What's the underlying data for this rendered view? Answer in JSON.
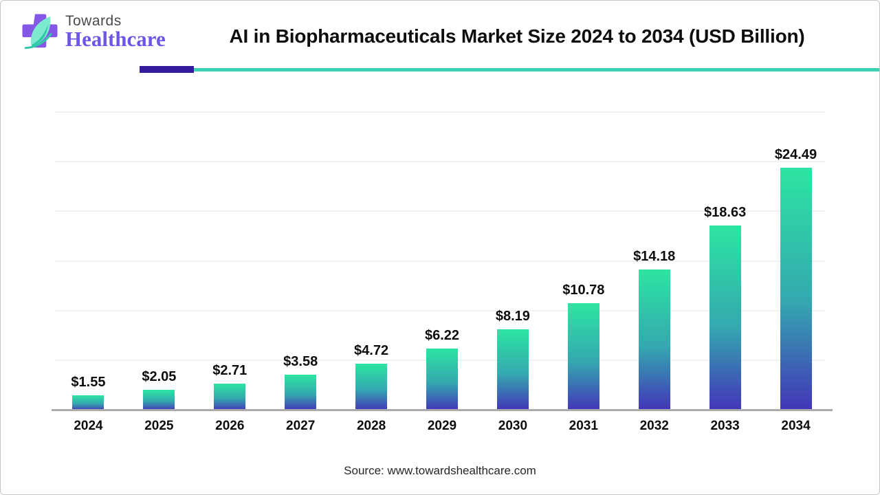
{
  "page": {
    "logo": {
      "line1": "Towards",
      "line2": "Healthcare"
    },
    "title": "AI in Biopharmaceuticals Market Size 2024 to 2034 (USD Billion)",
    "source": "Source: www.towardshealthcare.com",
    "colors": {
      "bar-top": "#2de5a2",
      "bar-mid": "#34a8af",
      "bar-bottom": "#4334b8",
      "accent-purple": "#341b9e",
      "accent-teal": "#3ed0b2",
      "logo-purple": "#8457e6",
      "logo-text-purple": "#6f55e6",
      "leaf-light": "#7de9cf",
      "leaf-dark": "#2ec9a7",
      "axis-line": "#ababab",
      "gridline": "#f1f1f1"
    }
  },
  "chart_data": {
    "type": "bar",
    "title": "AI in Biopharmaceuticals Market Size 2024 to 2034 (USD Billion)",
    "categories": [
      "2024",
      "2025",
      "2026",
      "2027",
      "2028",
      "2029",
      "2030",
      "2031",
      "2032",
      "2033",
      "2034"
    ],
    "values": [
      1.55,
      2.05,
      2.71,
      3.58,
      4.72,
      6.22,
      8.19,
      10.78,
      14.18,
      18.63,
      24.49
    ],
    "labels": [
      "$1.55",
      "$2.05",
      "$2.71",
      "$3.58",
      "$4.72",
      "$6.22",
      "$8.19",
      "$10.78",
      "$14.18",
      "$18.63",
      "$24.49"
    ],
    "xlabel": "",
    "ylabel": "",
    "ylim": [
      0,
      30
    ],
    "gridlines": [
      5,
      10,
      15,
      20,
      25,
      30
    ],
    "grid": true,
    "legend": false,
    "value_prefix": "$"
  }
}
